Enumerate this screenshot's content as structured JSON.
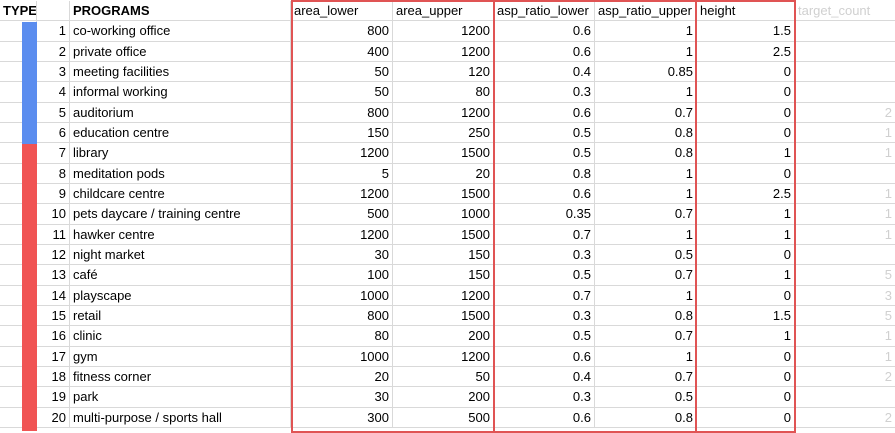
{
  "headers": {
    "type": "TYPE",
    "programs": "PROGRAMS",
    "area_lower": "area_lower",
    "area_upper": "area_upper",
    "asp_ratio_lower": "asp_ratio_lower",
    "asp_ratio_upper": "asp_ratio_upper",
    "height": "height",
    "target_count": "target_count"
  },
  "type_colors": {
    "blue": "#5b8def",
    "red": "#f05454"
  },
  "highlight_color": "#e05454",
  "rows": [
    {
      "n": "1",
      "program": "co-working office",
      "area_lower": "800",
      "area_upper": "1200",
      "asp_lower": "0.6",
      "asp_upper": "1",
      "height": "1.5",
      "target": ""
    },
    {
      "n": "2",
      "program": "private office",
      "area_lower": "400",
      "area_upper": "1200",
      "asp_lower": "0.6",
      "asp_upper": "1",
      "height": "2.5",
      "target": ""
    },
    {
      "n": "3",
      "program": "meeting facilities",
      "area_lower": "50",
      "area_upper": "120",
      "asp_lower": "0.4",
      "asp_upper": "0.85",
      "height": "0",
      "target": ""
    },
    {
      "n": "4",
      "program": "informal working",
      "area_lower": "50",
      "area_upper": "80",
      "asp_lower": "0.3",
      "asp_upper": "1",
      "height": "0",
      "target": ""
    },
    {
      "n": "5",
      "program": "auditorium",
      "area_lower": "800",
      "area_upper": "1200",
      "asp_lower": "0.6",
      "asp_upper": "0.7",
      "height": "0",
      "target": "2"
    },
    {
      "n": "6",
      "program": "education centre",
      "area_lower": "150",
      "area_upper": "250",
      "asp_lower": "0.5",
      "asp_upper": "0.8",
      "height": "0",
      "target": "1"
    },
    {
      "n": "7",
      "program": "library",
      "area_lower": "1200",
      "area_upper": "1500",
      "asp_lower": "0.5",
      "asp_upper": "0.8",
      "height": "1",
      "target": "1"
    },
    {
      "n": "8",
      "program": "meditation pods",
      "area_lower": "5",
      "area_upper": "20",
      "asp_lower": "0.8",
      "asp_upper": "1",
      "height": "0",
      "target": ""
    },
    {
      "n": "9",
      "program": "childcare centre",
      "area_lower": "1200",
      "area_upper": "1500",
      "asp_lower": "0.6",
      "asp_upper": "1",
      "height": "2.5",
      "target": "1"
    },
    {
      "n": "10",
      "program": "pets daycare / training centre",
      "area_lower": "500",
      "area_upper": "1000",
      "asp_lower": "0.35",
      "asp_upper": "0.7",
      "height": "1",
      "target": "1"
    },
    {
      "n": "11",
      "program": "hawker centre",
      "area_lower": "1200",
      "area_upper": "1500",
      "asp_lower": "0.7",
      "asp_upper": "1",
      "height": "1",
      "target": "1"
    },
    {
      "n": "12",
      "program": "night market",
      "area_lower": "30",
      "area_upper": "150",
      "asp_lower": "0.3",
      "asp_upper": "0.5",
      "height": "0",
      "target": ""
    },
    {
      "n": "13",
      "program": "café",
      "area_lower": "100",
      "area_upper": "150",
      "asp_lower": "0.5",
      "asp_upper": "0.7",
      "height": "1",
      "target": "5"
    },
    {
      "n": "14",
      "program": "playscape",
      "area_lower": "1000",
      "area_upper": "1200",
      "asp_lower": "0.7",
      "asp_upper": "1",
      "height": "0",
      "target": "3"
    },
    {
      "n": "15",
      "program": "retail",
      "area_lower": "800",
      "area_upper": "1500",
      "asp_lower": "0.3",
      "asp_upper": "0.8",
      "height": "1.5",
      "target": "5"
    },
    {
      "n": "16",
      "program": "clinic",
      "area_lower": "80",
      "area_upper": "200",
      "asp_lower": "0.5",
      "asp_upper": "0.7",
      "height": "1",
      "target": "1"
    },
    {
      "n": "17",
      "program": "gym",
      "area_lower": "1000",
      "area_upper": "1200",
      "asp_lower": "0.6",
      "asp_upper": "1",
      "height": "0",
      "target": "1"
    },
    {
      "n": "18",
      "program": "fitness corner",
      "area_lower": "20",
      "area_upper": "50",
      "asp_lower": "0.4",
      "asp_upper": "0.7",
      "height": "0",
      "target": "2"
    },
    {
      "n": "19",
      "program": "park",
      "area_lower": "30",
      "area_upper": "200",
      "asp_lower": "0.3",
      "asp_upper": "0.5",
      "height": "0",
      "target": ""
    },
    {
      "n": "20",
      "program": "multi-purpose / sports hall",
      "area_lower": "300",
      "area_upper": "500",
      "asp_lower": "0.6",
      "asp_upper": "0.8",
      "height": "0",
      "target": "2"
    }
  ]
}
